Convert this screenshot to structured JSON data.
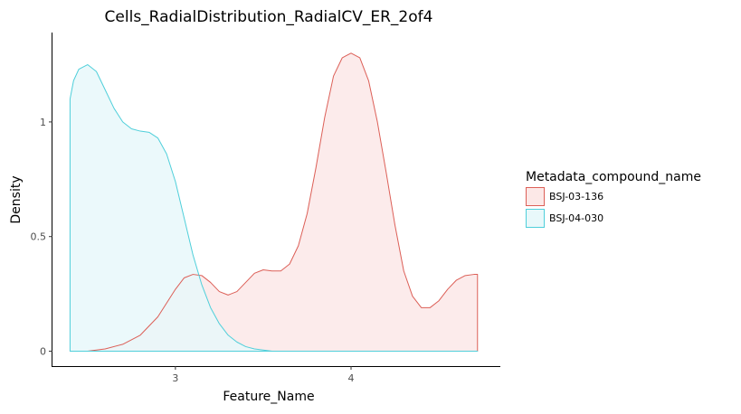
{
  "chart_data": {
    "type": "area",
    "title": "Cells_RadialDistribution_RadialCV_ER_2of4",
    "xlabel": "Feature_Name",
    "ylabel": "Density",
    "xlim": [
      2.3,
      4.85
    ],
    "ylim": [
      -0.065,
      1.39
    ],
    "x_ticks": [
      3,
      4
    ],
    "x_tick_labels": [
      "3",
      "4"
    ],
    "y_ticks": [
      0,
      0.5,
      1
    ],
    "y_tick_labels": [
      "0",
      "0.5",
      "1"
    ],
    "grid": false,
    "legend": {
      "title": "Metadata_compound_name",
      "position": "right"
    },
    "series": [
      {
        "name": "BSJ-03-136",
        "line_color": "#dc5f57",
        "fill_color": "#fce8e7",
        "x": [
          2.4,
          2.5,
          2.6,
          2.7,
          2.8,
          2.9,
          3.0,
          3.05,
          3.1,
          3.15,
          3.2,
          3.25,
          3.3,
          3.35,
          3.4,
          3.45,
          3.5,
          3.55,
          3.6,
          3.65,
          3.7,
          3.75,
          3.8,
          3.85,
          3.9,
          3.95,
          4.0,
          4.05,
          4.1,
          4.15,
          4.2,
          4.25,
          4.3,
          4.35,
          4.4,
          4.45,
          4.5,
          4.55,
          4.6,
          4.65,
          4.7,
          4.72
        ],
        "y": [
          0.0,
          0.0,
          0.01,
          0.03,
          0.07,
          0.15,
          0.27,
          0.32,
          0.335,
          0.33,
          0.3,
          0.26,
          0.245,
          0.26,
          0.3,
          0.34,
          0.355,
          0.35,
          0.35,
          0.38,
          0.46,
          0.6,
          0.8,
          1.02,
          1.2,
          1.28,
          1.3,
          1.28,
          1.18,
          1.0,
          0.78,
          0.55,
          0.35,
          0.24,
          0.19,
          0.19,
          0.22,
          0.27,
          0.31,
          0.33,
          0.335,
          0.335
        ]
      },
      {
        "name": "BSJ-04-030",
        "line_color": "#4fcfda",
        "fill_color": "#e8f8fa",
        "x": [
          2.4,
          2.42,
          2.45,
          2.5,
          2.55,
          2.6,
          2.65,
          2.7,
          2.75,
          2.8,
          2.85,
          2.9,
          2.95,
          3.0,
          3.05,
          3.1,
          3.15,
          3.2,
          3.25,
          3.3,
          3.35,
          3.4,
          3.45,
          3.5,
          3.55,
          3.6,
          3.7,
          3.8,
          3.9,
          4.0,
          4.1,
          4.2,
          4.3,
          4.4,
          4.5,
          4.6,
          4.72
        ],
        "y": [
          1.1,
          1.18,
          1.23,
          1.25,
          1.22,
          1.14,
          1.06,
          1.0,
          0.97,
          0.96,
          0.955,
          0.93,
          0.86,
          0.74,
          0.58,
          0.42,
          0.29,
          0.19,
          0.12,
          0.07,
          0.04,
          0.02,
          0.01,
          0.005,
          0.0,
          0.0,
          0.0,
          0.0,
          0.0,
          0.0,
          0.0,
          0.0,
          0.0,
          0.0,
          0.0,
          0.0,
          0.0
        ]
      }
    ]
  }
}
